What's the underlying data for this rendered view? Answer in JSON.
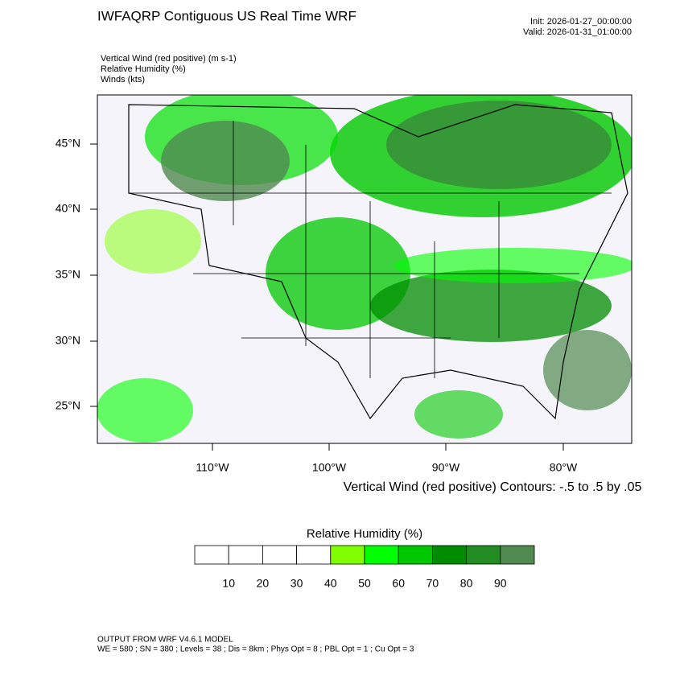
{
  "header": {
    "title": "IWFAQRP Contiguous US Real Time WRF",
    "init": "Init: 2026-01-27_00:00:00",
    "valid": "Valid: 2026-01-31_01:00:00",
    "fields": [
      "Vertical Wind (red positive)   (m s-1)",
      "Relative Humidity   (%)",
      "Winds   (kts)"
    ]
  },
  "map": {
    "lat_labels": [
      "45°N",
      "40°N",
      "35°N",
      "30°N",
      "25°N"
    ],
    "lon_labels": [
      "110°W",
      "100°W",
      "90°W",
      "80°W"
    ],
    "contour_note": "Vertical Wind (red positive) Contours: -.5 to .5 by .05"
  },
  "colorbar": {
    "title": "Relative Humidity  (%)",
    "colors": [
      "#ffffff",
      "#ffffff",
      "#ffffff",
      "#ffffff",
      "#80ff00",
      "#00ff00",
      "#00c800",
      "#008c00",
      "#228b22",
      "#508a50"
    ],
    "ticks": [
      10,
      20,
      30,
      40,
      50,
      60,
      70,
      80,
      90
    ]
  },
  "footer": {
    "model": "OUTPUT FROM WRF V4.6.1 MODEL",
    "settings": "WE = 580 ; SN = 380 ; Levels = 38 ; Dis = 8km ; Phys Opt = 8 ; PBL Opt = 1 ; Cu Opt = 3"
  }
}
